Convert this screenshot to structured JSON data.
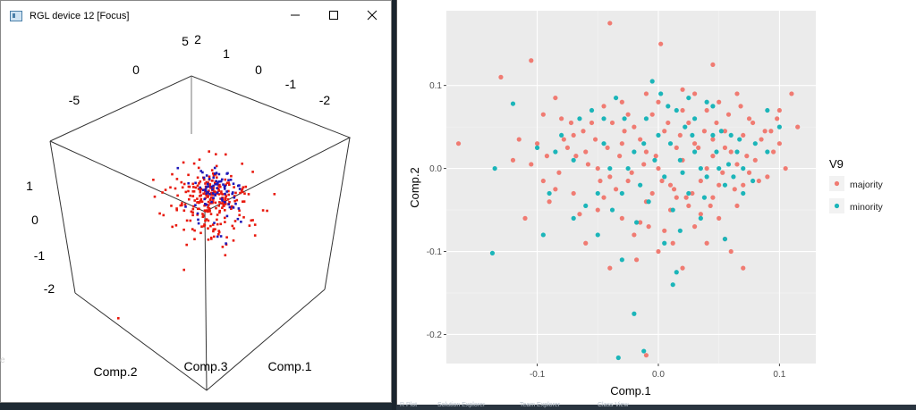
{
  "window": {
    "title": "RGL device 12 [Focus]",
    "icon": "app-icon",
    "controls": [
      "minimize-icon",
      "maximize-icon",
      "close-icon"
    ]
  },
  "taskbar": {
    "items": [
      "R Plot",
      "Solution Explorer",
      "Team Explorer",
      "Class View"
    ]
  },
  "edge_text": "e",
  "chart_data": [
    {
      "type": "scatter3d",
      "axis_labels": [
        "Comp.1",
        "Comp.2",
        "Comp.3"
      ],
      "top_ticks_left": [
        "-5",
        "0",
        "5"
      ],
      "top_ticks_right": [
        "2",
        "1",
        "0",
        "-1",
        "-2"
      ],
      "side_ticks": [
        "1",
        "0",
        "-1",
        "-2"
      ],
      "colors": {
        "majority": "#e8180c",
        "minority": "#1e18b8"
      },
      "point_counts": {
        "majority": 270,
        "minority": 80
      }
    },
    {
      "type": "scatter",
      "title": "",
      "xlabel": "Comp.1",
      "ylabel": "Comp.2",
      "xlim": [
        -0.175,
        0.13
      ],
      "ylim": [
        -0.235,
        0.19
      ],
      "xticks": [
        -0.1,
        0.0,
        0.1
      ],
      "xtick_labels": [
        "-0.1",
        "0.0",
        "0.1"
      ],
      "yticks": [
        -0.2,
        -0.1,
        0.0,
        0.1
      ],
      "ytick_labels": [
        "-0.2",
        "-0.1",
        "0.0",
        "0.1"
      ],
      "grid": true,
      "legend": {
        "title": "V9",
        "placement": "right",
        "entries": [
          "majority",
          "minority"
        ]
      },
      "series": [
        {
          "name": "majority",
          "color": "#f07b72",
          "points": [
            [
              -0.165,
              0.03
            ],
            [
              -0.13,
              0.11
            ],
            [
              -0.105,
              0.13
            ],
            [
              -0.04,
              0.175
            ],
            [
              0.002,
              0.15
            ],
            [
              0.045,
              0.125
            ],
            [
              0.11,
              0.09
            ],
            [
              0.04,
              0.07
            ],
            [
              -0.12,
              0.01
            ],
            [
              -0.1,
              0.03
            ],
            [
              -0.08,
              0.06
            ],
            [
              -0.07,
              0.04
            ],
            [
              -0.06,
              0.02
            ],
            [
              -0.05,
              0.0
            ],
            [
              -0.04,
              -0.01
            ],
            [
              -0.03,
              0.03
            ],
            [
              -0.02,
              0.05
            ],
            [
              -0.01,
              0.02
            ],
            [
              0.0,
              0.0
            ],
            [
              0.01,
              -0.02
            ],
            [
              0.02,
              0.01
            ],
            [
              0.03,
              0.03
            ],
            [
              0.04,
              0.0
            ],
            [
              0.05,
              -0.02
            ],
            [
              0.06,
              0.02
            ],
            [
              0.07,
              0.04
            ],
            [
              0.08,
              0.01
            ],
            [
              0.09,
              -0.01
            ],
            [
              0.1,
              0.03
            ],
            [
              -0.09,
              -0.04
            ],
            [
              -0.07,
              -0.03
            ],
            [
              -0.05,
              -0.05
            ],
            [
              -0.03,
              -0.06
            ],
            [
              -0.01,
              -0.04
            ],
            [
              0.01,
              -0.05
            ],
            [
              0.03,
              -0.07
            ],
            [
              0.05,
              -0.06
            ],
            [
              0.07,
              -0.02
            ],
            [
              -0.11,
              -0.06
            ],
            [
              -0.06,
              -0.09
            ],
            [
              -0.02,
              -0.08
            ],
            [
              0.0,
              -0.1
            ],
            [
              0.02,
              -0.12
            ],
            [
              0.04,
              -0.09
            ],
            [
              0.06,
              -0.1
            ],
            [
              -0.04,
              -0.12
            ],
            [
              -0.03,
              0.08
            ],
            [
              -0.01,
              0.09
            ],
            [
              0.02,
              0.07
            ],
            [
              0.05,
              0.08
            ],
            [
              0.065,
              0.09
            ],
            [
              0.075,
              0.06
            ],
            [
              -0.085,
              0.085
            ],
            [
              -0.095,
              0.065
            ],
            [
              -0.075,
              0.025
            ],
            [
              -0.055,
              0.055
            ],
            [
              -0.045,
              0.075
            ],
            [
              -0.025,
              0.065
            ],
            [
              -0.015,
              0.035
            ],
            [
              0.005,
              0.045
            ],
            [
              0.015,
              0.025
            ],
            [
              0.025,
              0.055
            ],
            [
              0.035,
              -0.015
            ],
            [
              0.045,
              0.015
            ],
            [
              0.055,
              0.045
            ],
            [
              0.065,
              0.005
            ],
            [
              0.075,
              -0.005
            ],
            [
              0.085,
              0.035
            ],
            [
              0.095,
              0.02
            ],
            [
              0.105,
              0.0
            ],
            [
              0.115,
              0.05
            ],
            [
              -0.115,
              0.035
            ],
            [
              -0.105,
              0.005
            ],
            [
              -0.095,
              -0.015
            ],
            [
              -0.085,
              -0.025
            ],
            [
              -0.065,
              -0.055
            ],
            [
              -0.045,
              -0.035
            ],
            [
              -0.035,
              -0.025
            ],
            [
              -0.025,
              -0.015
            ],
            [
              -0.015,
              -0.065
            ],
            [
              -0.005,
              -0.03
            ],
            [
              0.005,
              -0.075
            ],
            [
              0.015,
              -0.035
            ],
            [
              0.025,
              -0.045
            ],
            [
              0.035,
              -0.055
            ],
            [
              0.045,
              -0.035
            ],
            [
              0.055,
              -0.085
            ],
            [
              0.065,
              -0.045
            ],
            [
              0.07,
              -0.12
            ],
            [
              0.012,
              -0.09
            ],
            [
              -0.008,
              -0.07
            ],
            [
              -0.018,
              -0.11
            ],
            [
              0.028,
              -0.03
            ],
            [
              0.038,
              0.045
            ],
            [
              0.048,
              0.055
            ],
            [
              0.058,
              0.065
            ],
            [
              0.068,
              0.075
            ],
            [
              0.078,
              0.055
            ],
            [
              0.088,
              0.045
            ],
            [
              0.098,
              0.06
            ],
            [
              -0.002,
              0.015
            ],
            [
              -0.012,
              0.005
            ],
            [
              -0.022,
              -0.005
            ],
            [
              -0.032,
              0.015
            ],
            [
              -0.042,
              0.025
            ],
            [
              -0.052,
              0.035
            ],
            [
              -0.062,
              0.045
            ],
            [
              -0.072,
              0.055
            ],
            [
              -0.082,
              -0.005
            ],
            [
              -0.092,
              0.015
            ],
            [
              -0.01,
              -0.225
            ],
            [
              0.003,
              -0.015
            ],
            [
              0.013,
              -0.025
            ],
            [
              0.023,
              -0.035
            ],
            [
              0.033,
              0.025
            ],
            [
              0.043,
              -0.045
            ],
            [
              0.053,
              -0.005
            ],
            [
              0.063,
              -0.025
            ],
            [
              0.073,
              0.015
            ],
            [
              0.083,
              -0.015
            ],
            [
              0.093,
              0.045
            ],
            [
              0.1,
              0.07
            ],
            [
              -0.028,
              0.045
            ],
            [
              -0.038,
              0.055
            ],
            [
              -0.048,
              -0.015
            ],
            [
              -0.058,
              0.005
            ],
            [
              -0.068,
              0.015
            ],
            [
              -0.078,
              0.035
            ],
            [
              0.03,
              0.09
            ],
            [
              0.02,
              0.095
            ],
            [
              0.0,
              0.08
            ],
            [
              -0.005,
              0.065
            ],
            [
              0.008,
              0.055
            ],
            [
              0.018,
              0.04
            ],
            [
              0.045,
              0.035
            ],
            [
              0.055,
              0.025
            ]
          ]
        },
        {
          "name": "minority",
          "color": "#1bb5b9",
          "points": [
            [
              -0.135,
              0.0
            ],
            [
              -0.137,
              -0.102
            ],
            [
              -0.12,
              0.078
            ],
            [
              -0.1,
              0.025
            ],
            [
              -0.09,
              -0.03
            ],
            [
              -0.095,
              -0.08
            ],
            [
              -0.08,
              0.04
            ],
            [
              -0.07,
              0.01
            ],
            [
              -0.07,
              -0.06
            ],
            [
              -0.06,
              -0.045
            ],
            [
              -0.055,
              0.07
            ],
            [
              -0.05,
              -0.08
            ],
            [
              -0.045,
              0.03
            ],
            [
              -0.04,
              0.0
            ],
            [
              -0.038,
              -0.05
            ],
            [
              -0.035,
              0.085
            ],
            [
              -0.03,
              -0.03
            ],
            [
              -0.03,
              -0.11
            ],
            [
              -0.028,
              0.06
            ],
            [
              -0.02,
              0.02
            ],
            [
              -0.015,
              -0.02
            ],
            [
              -0.01,
              0.06
            ],
            [
              -0.005,
              0.105
            ],
            [
              0.0,
              0.04
            ],
            [
              0.005,
              -0.01
            ],
            [
              0.005,
              -0.09
            ],
            [
              0.01,
              0.03
            ],
            [
              0.012,
              -0.05
            ],
            [
              0.015,
              0.07
            ],
            [
              0.02,
              -0.005
            ],
            [
              0.022,
              0.05
            ],
            [
              0.025,
              -0.03
            ],
            [
              0.03,
              0.02
            ],
            [
              0.035,
              -0.06
            ],
            [
              0.04,
              0.08
            ],
            [
              0.04,
              -0.01
            ],
            [
              0.045,
              0.04
            ],
            [
              0.05,
              0.0
            ],
            [
              0.055,
              -0.02
            ],
            [
              0.06,
              0.04
            ],
            [
              0.065,
              0.02
            ],
            [
              0.07,
              0.0
            ],
            [
              0.07,
              -0.03
            ],
            [
              0.08,
              0.03
            ],
            [
              0.09,
              0.02
            ],
            [
              0.1,
              0.05
            ],
            [
              0.09,
              0.07
            ],
            [
              0.03,
              0.06
            ],
            [
              0.045,
              0.075
            ],
            [
              -0.02,
              -0.175
            ],
            [
              -0.033,
              -0.228
            ],
            [
              -0.012,
              -0.22
            ],
            [
              0.015,
              -0.125
            ],
            [
              0.012,
              -0.14
            ],
            [
              0.055,
              -0.085
            ],
            [
              -0.018,
              -0.065
            ],
            [
              -0.003,
              0.01
            ],
            [
              -0.012,
              0.03
            ],
            [
              -0.025,
              0.0
            ],
            [
              -0.045,
              0.06
            ],
            [
              0.035,
              0.0
            ],
            [
              0.028,
              0.04
            ],
            [
              0.048,
              0.02
            ],
            [
              0.058,
              0.005
            ],
            [
              0.067,
              0.035
            ],
            [
              0.062,
              -0.01
            ],
            [
              0.018,
              0.01
            ],
            [
              0.008,
              0.075
            ],
            [
              0.002,
              0.09
            ],
            [
              -0.008,
              -0.04
            ],
            [
              0.038,
              -0.035
            ],
            [
              0.052,
              0.045
            ],
            [
              -0.065,
              0.06
            ],
            [
              -0.085,
              0.02
            ],
            [
              0.078,
              -0.015
            ],
            [
              0.018,
              -0.075
            ],
            [
              -0.05,
              -0.03
            ],
            [
              0.025,
              0.085
            ]
          ]
        }
      ]
    }
  ]
}
